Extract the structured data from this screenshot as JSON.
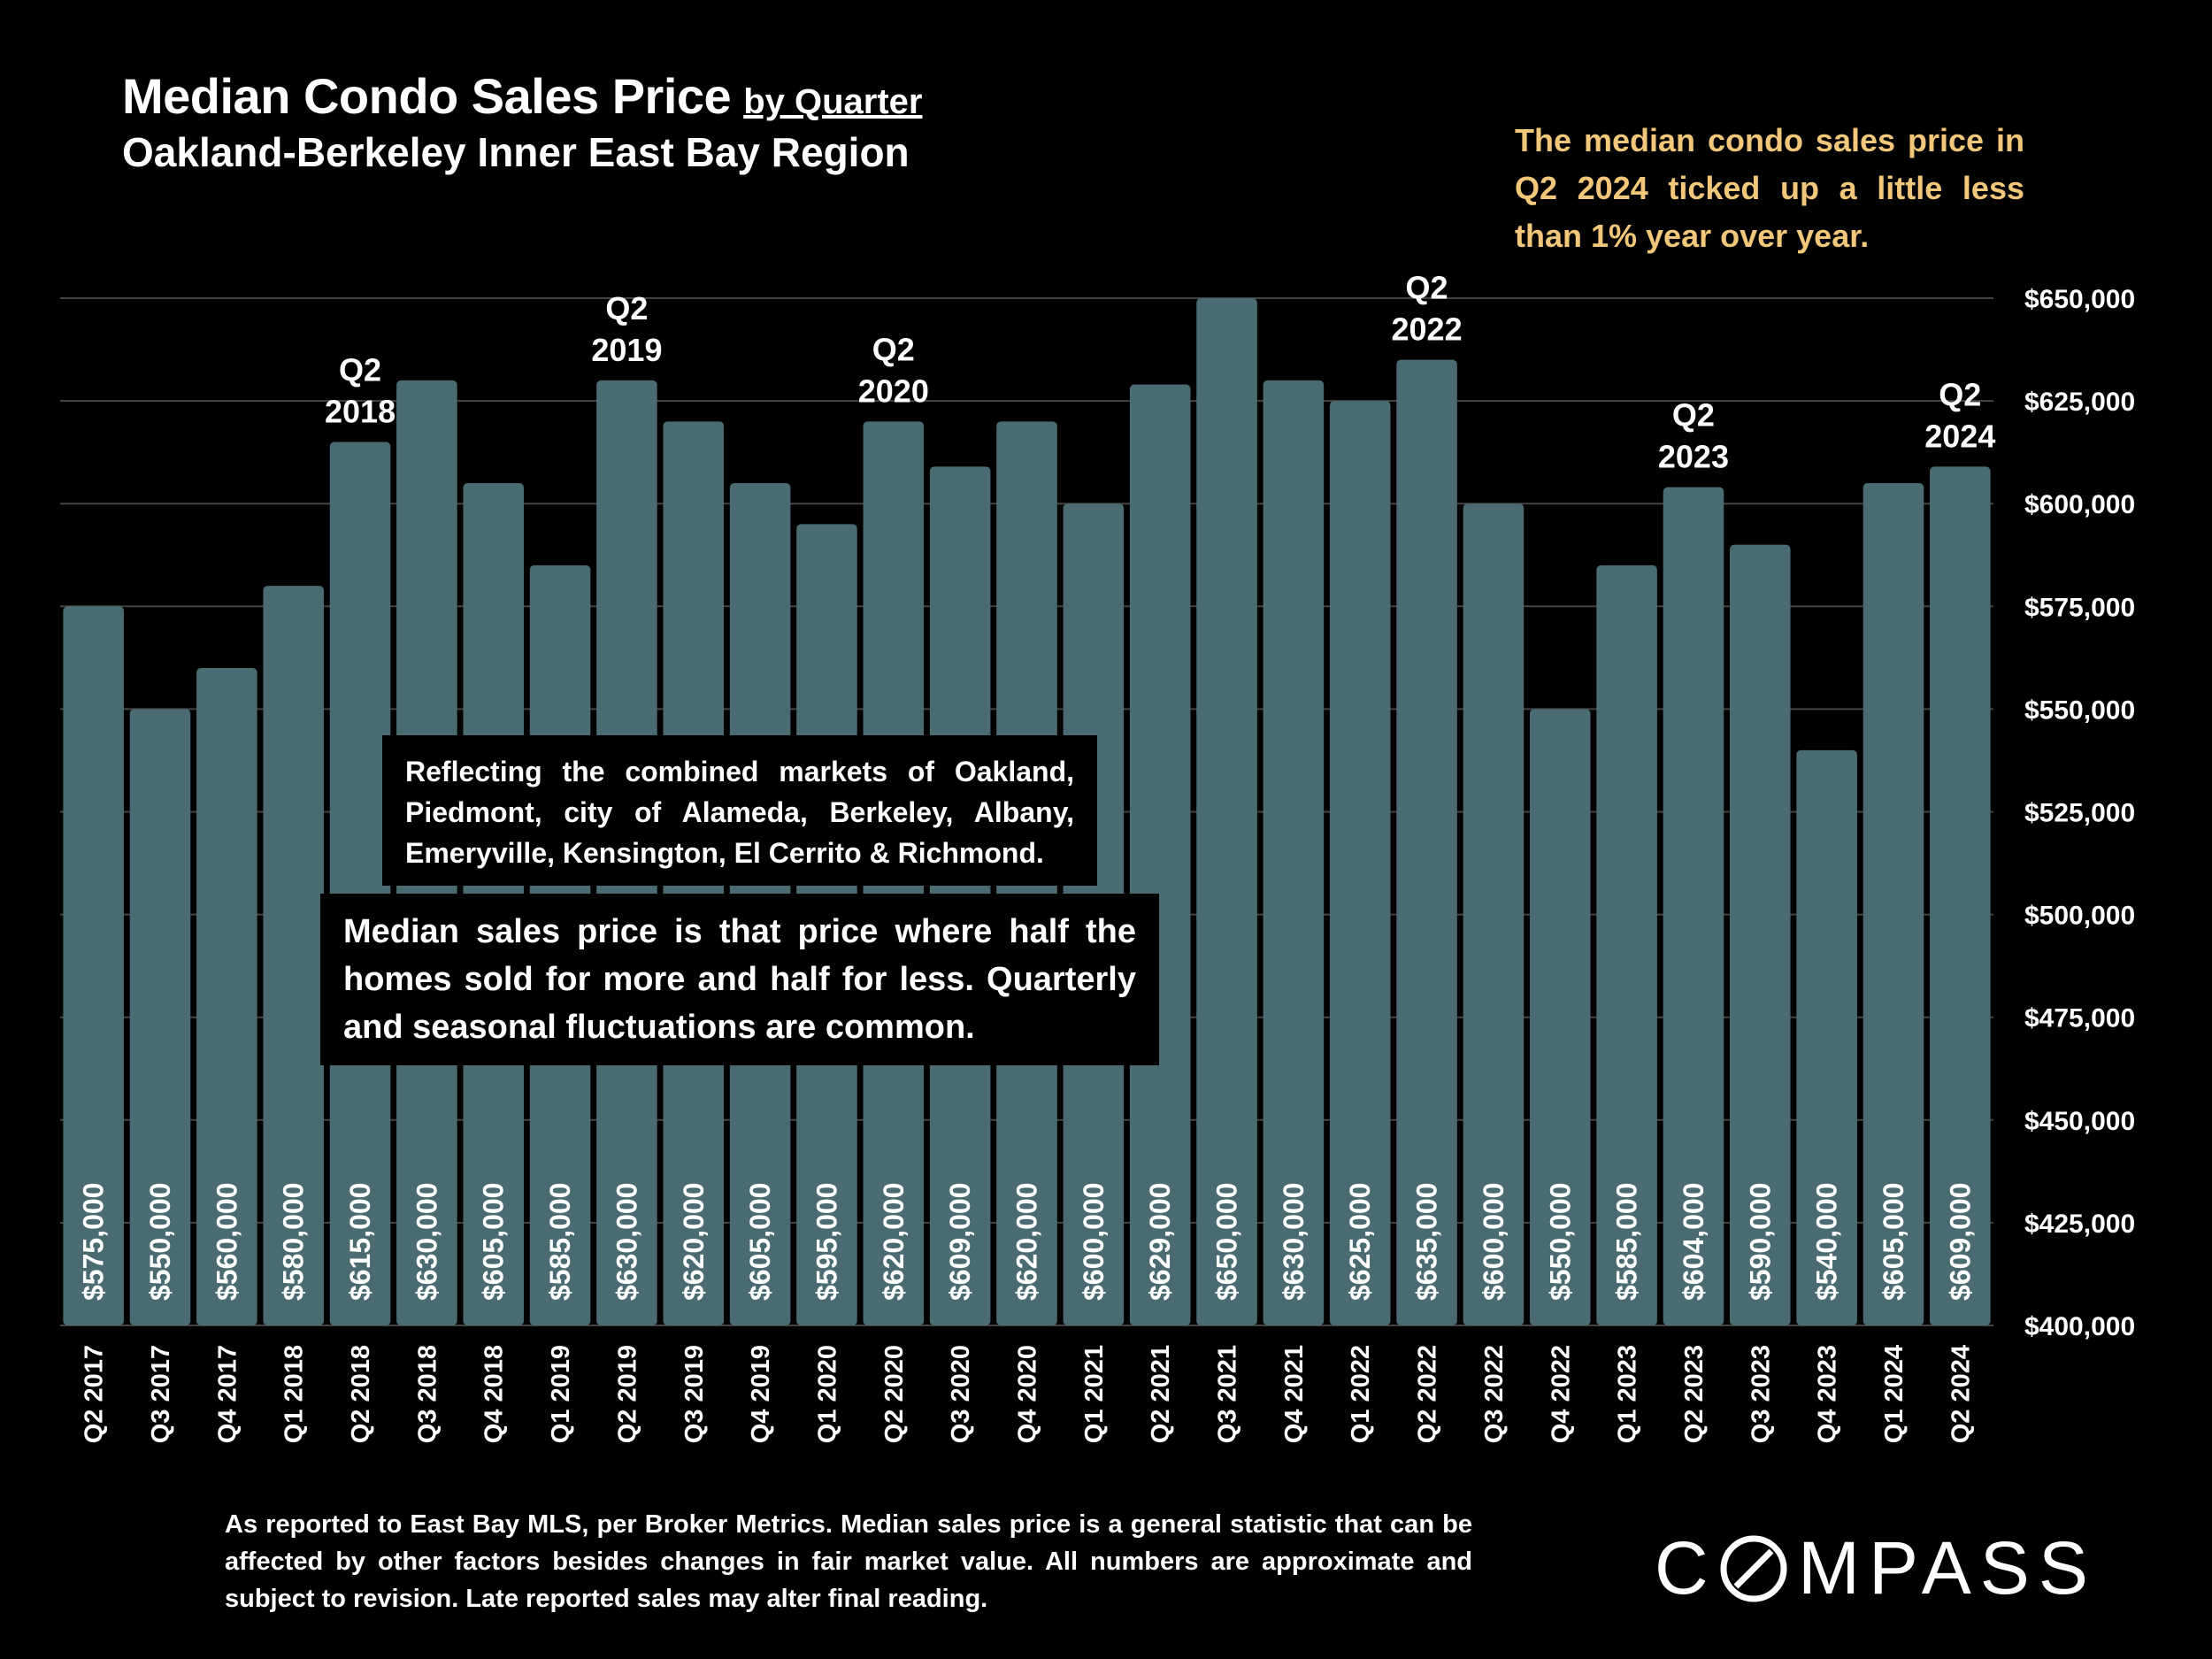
{
  "header": {
    "title": "Median Condo Sales Price",
    "title_suffix": "by Quarter",
    "subtitle": "Oakland-Berkeley Inner East Bay Region"
  },
  "callout": "The median condo sales price in Q2 2024 ticked up a little less than 1% year over year.",
  "notes": {
    "markets": "Reflecting the combined markets of Oakland, Piedmont, city of Alameda, Berkeley, Albany, Emeryville, Kensington, El Cerrito & Richmond.",
    "median": "Median sales price is that price where half the homes sold for more and half for less. Quarterly and seasonal fluctuations are common."
  },
  "footnote": "As reported to East Bay MLS, per Broker Metrics. Median sales price is a general statistic that can be affected by other factors besides changes in fair market value. All numbers are approximate and subject to revision. Late reported sales may alter final reading.",
  "logo_text": "COMPASS",
  "colors": {
    "background": "#000000",
    "bar": "#4a6b72",
    "gridline": "#444444",
    "callout": "#f2c77a",
    "text": "#ffffff"
  },
  "chart_data": {
    "type": "bar",
    "categories": [
      "Q2 2017",
      "Q3 2017",
      "Q4 2017",
      "Q1 2018",
      "Q2 2018",
      "Q3 2018",
      "Q4 2018",
      "Q1 2019",
      "Q2 2019",
      "Q3 2019",
      "Q4 2019",
      "Q1 2020",
      "Q2 2020",
      "Q3 2020",
      "Q4 2020",
      "Q1 2021",
      "Q2 2021",
      "Q3 2021",
      "Q4 2021",
      "Q1 2022",
      "Q2 2022",
      "Q3 2022",
      "Q4 2022",
      "Q1 2023",
      "Q2 2023",
      "Q3 2023",
      "Q4 2023",
      "Q1 2024",
      "Q2 2024"
    ],
    "values": [
      575000,
      550000,
      560000,
      580000,
      615000,
      630000,
      605000,
      585000,
      630000,
      620000,
      605000,
      595000,
      620000,
      609000,
      620000,
      600000,
      629000,
      650000,
      630000,
      625000,
      635000,
      600000,
      550000,
      585000,
      604000,
      590000,
      540000,
      605000,
      609000
    ],
    "value_labels": [
      "$575,000",
      "$550,000",
      "$560,000",
      "$580,000",
      "$615,000",
      "$630,000",
      "$605,000",
      "$585,000",
      "$630,000",
      "$620,000",
      "$605,000",
      "$595,000",
      "$620,000",
      "$609,000",
      "$620,000",
      "$600,000",
      "$629,000",
      "$650,000",
      "$630,000",
      "$625,000",
      "$635,000",
      "$600,000",
      "$550,000",
      "$585,000",
      "$604,000",
      "$590,000",
      "$540,000",
      "$605,000",
      "$609,000"
    ],
    "ylim": [
      400000,
      650000
    ],
    "y_ticks": [
      400000,
      425000,
      450000,
      475000,
      500000,
      525000,
      550000,
      575000,
      600000,
      625000,
      650000
    ],
    "y_tick_labels": [
      "$400,000",
      "$425,000",
      "$450,000",
      "$475,000",
      "$500,000",
      "$525,000",
      "$550,000",
      "$575,000",
      "$600,000",
      "$625,000",
      "$650,000"
    ],
    "y_axis_side": "right",
    "grid": true,
    "annotations": [
      {
        "category": "Q2 2018",
        "lines": [
          "Q2",
          "2018"
        ]
      },
      {
        "category": "Q2 2019",
        "lines": [
          "Q2",
          "2019"
        ]
      },
      {
        "category": "Q2 2020",
        "lines": [
          "Q2",
          "2020"
        ]
      },
      {
        "category": "Q2 2022",
        "lines": [
          "Q2",
          "2022"
        ]
      },
      {
        "category": "Q2 2023",
        "lines": [
          "Q2",
          "2023"
        ]
      },
      {
        "category": "Q2 2024",
        "lines": [
          "Q2",
          "2024"
        ]
      }
    ]
  }
}
